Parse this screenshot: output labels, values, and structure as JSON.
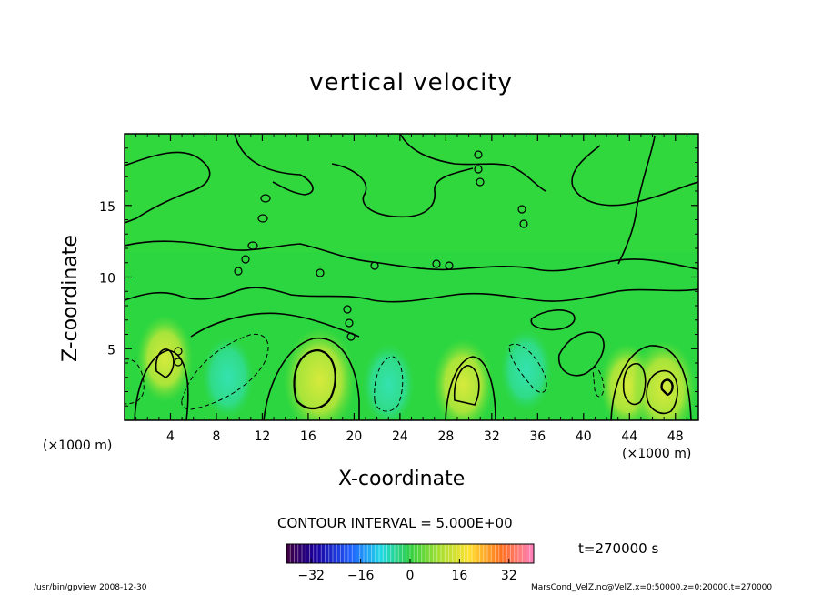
{
  "chart_data": {
    "type": "heatmap",
    "title": "vertical velocity",
    "xlabel": "X-coordinate",
    "ylabel": "Z-coordinate",
    "x_unit_left": "(×1000 m)",
    "x_unit_right": "(×1000 m)",
    "xlim": [
      0,
      50
    ],
    "ylim": [
      0,
      20
    ],
    "x_ticks": [
      4,
      8,
      12,
      16,
      20,
      24,
      28,
      32,
      36,
      40,
      44,
      48
    ],
    "y_ticks": [
      5,
      10,
      15
    ],
    "contour_interval_label": "CONTOUR INTERVAL = 5.000E+00",
    "colorbar": {
      "min": -40,
      "max": 40,
      "ticks": [
        -32,
        -16,
        0,
        16,
        32
      ]
    },
    "time_label": "t=270000 s",
    "features": [
      {
        "x": 3.5,
        "z": 4.3,
        "value": 8
      },
      {
        "x": 9,
        "z": 3,
        "value": -6
      },
      {
        "x": 17,
        "z": 2.8,
        "value": 16
      },
      {
        "x": 23,
        "z": 2.5,
        "value": -6
      },
      {
        "x": 29.5,
        "z": 2.5,
        "value": 10
      },
      {
        "x": 35,
        "z": 3.5,
        "value": -6
      },
      {
        "x": 43.8,
        "z": 2.4,
        "value": 7
      },
      {
        "x": 47,
        "z": 2.2,
        "value": 12
      }
    ]
  },
  "colors": {
    "background_field": "#22d63a",
    "positive_center": "#c8e83a",
    "negative_center": "#2ee0a0"
  },
  "footer": {
    "program": "/usr/bin/gpview   2008-12-30",
    "source": "MarsCond_VelZ.nc@VelZ,x=0:50000,z=0:20000,t=270000"
  }
}
